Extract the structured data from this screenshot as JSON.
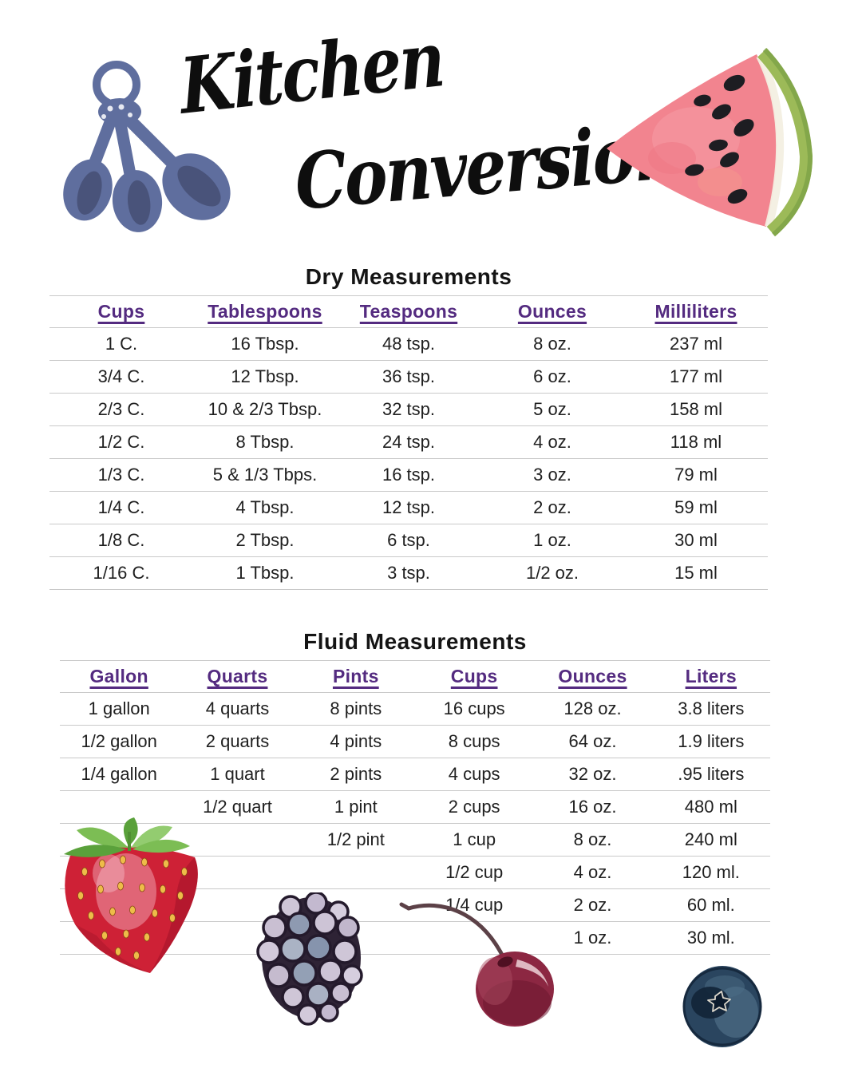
{
  "header": {
    "title_line1": "Kitchen",
    "title_line2": "Conversions"
  },
  "dry_table": {
    "title": "Dry Measurements",
    "headers": [
      "Cups",
      "Tablespoons",
      "Teaspoons",
      "Ounces",
      "Milliliters"
    ],
    "rows": [
      [
        "1 C.",
        "16 Tbsp.",
        "48 tsp.",
        "8 oz.",
        "237 ml"
      ],
      [
        "3/4 C.",
        "12 Tbsp.",
        "36 tsp.",
        "6 oz.",
        "177 ml"
      ],
      [
        "2/3 C.",
        "10 & 2/3 Tbsp.",
        "32 tsp.",
        "5 oz.",
        "158 ml"
      ],
      [
        "1/2 C.",
        "8 Tbsp.",
        "24 tsp.",
        "4 oz.",
        "118 ml"
      ],
      [
        "1/3 C.",
        "5 & 1/3 Tbps.",
        "16 tsp.",
        "3 oz.",
        "79 ml"
      ],
      [
        "1/4 C.",
        "4 Tbsp.",
        "12 tsp.",
        "2 oz.",
        "59 ml"
      ],
      [
        "1/8 C.",
        "2 Tbsp.",
        "6 tsp.",
        "1 oz.",
        "30 ml"
      ],
      [
        "1/16 C.",
        "1 Tbsp.",
        "3 tsp.",
        "1/2 oz.",
        "15 ml"
      ]
    ]
  },
  "fluid_table": {
    "title": "Fluid Measurements",
    "headers": [
      "Gallon",
      "Quarts",
      "Pints",
      "Cups",
      "Ounces",
      "Liters"
    ],
    "rows": [
      [
        "1 gallon",
        "4 quarts",
        "8 pints",
        "16 cups",
        "128 oz.",
        "3.8 liters"
      ],
      [
        "1/2 gallon",
        "2 quarts",
        "4 pints",
        "8 cups",
        "64 oz.",
        "1.9 liters"
      ],
      [
        "1/4 gallon",
        "1 quart",
        "2 pints",
        "4 cups",
        "32 oz.",
        ".95 liters"
      ],
      [
        "",
        "1/2 quart",
        "1 pint",
        "2 cups",
        "16 oz.",
        "480 ml"
      ],
      [
        "",
        "",
        "1/2 pint",
        "1 cup",
        "8 oz.",
        "240 ml"
      ],
      [
        "",
        "",
        "",
        "1/2 cup",
        "4 oz.",
        "120 ml."
      ],
      [
        "",
        "",
        "",
        "1/4 cup",
        "2 oz.",
        "60 ml."
      ],
      [
        "",
        "",
        "",
        "",
        "1 oz.",
        "30 ml."
      ]
    ]
  },
  "colors": {
    "header_purple": "#542b80",
    "table_line": "#c9c9c9",
    "body_text": "#1f1f1f",
    "spoon_blue": "#5f6e9e",
    "watermelon_pink": "#f2848f",
    "watermelon_rind": "#9cba58",
    "strawberry_red": "#ce2136",
    "leaf_green": "#7cbd54",
    "blackberry_lavender": "#cdc4d6",
    "cherry_red": "#8c2742",
    "blueberry_blue": "#2a455f"
  }
}
